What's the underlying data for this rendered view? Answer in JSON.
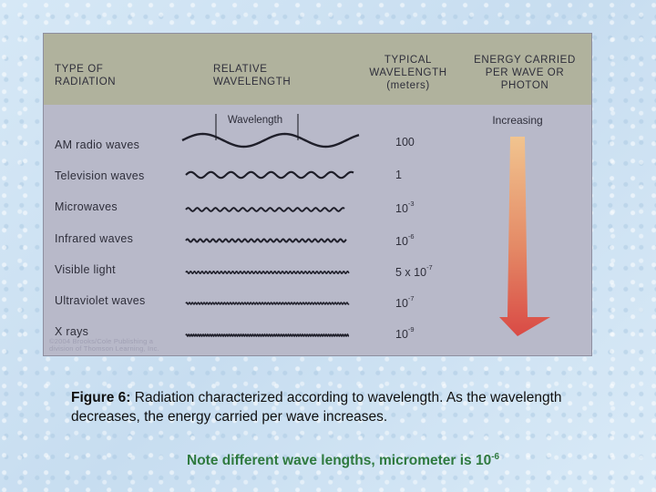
{
  "figure": {
    "headers": {
      "type": "TYPE OF\nRADIATION",
      "relative": "RELATIVE\nWAVELENGTH",
      "typical": "TYPICAL\nWAVELENGTH\n(meters)",
      "energy": "ENERGY CARRIED\nPER WAVE OR\nPHOTON"
    },
    "wavelength_label": "Wavelength",
    "increasing_label": "Increasing",
    "rows": [
      {
        "name": "AM radio waves",
        "value_base": "100",
        "value_exp": ""
      },
      {
        "name": "Television waves",
        "value_base": "1",
        "value_exp": ""
      },
      {
        "name": "Microwaves",
        "value_base": "10",
        "value_exp": "-3"
      },
      {
        "name": "Infrared waves",
        "value_base": "10",
        "value_exp": "-6"
      },
      {
        "name": "Visible light",
        "value_base": "5 x 10",
        "value_exp": "-7"
      },
      {
        "name": "Ultraviolet waves",
        "value_base": "10",
        "value_exp": "-7"
      },
      {
        "name": "X rays",
        "value_base": "10",
        "value_exp": "-9"
      }
    ],
    "copyright": "©2004 Brooks/Cole Publishing a\ndivision of Thomson Learning, Inc.",
    "colors": {
      "arrow_top": "#f1c48f",
      "arrow_bottom": "#d94a45",
      "header_bg": "#b0b29d",
      "panel_bg": "#b8b9c9"
    }
  },
  "caption": {
    "lead": "Figure 6:",
    "text": " Radiation characterized according to wavelength. As the wavelength decreases, the energy carried per wave increases."
  },
  "note": {
    "text": "Note different wave lengths, micrometer is 10",
    "exp": "-6"
  }
}
